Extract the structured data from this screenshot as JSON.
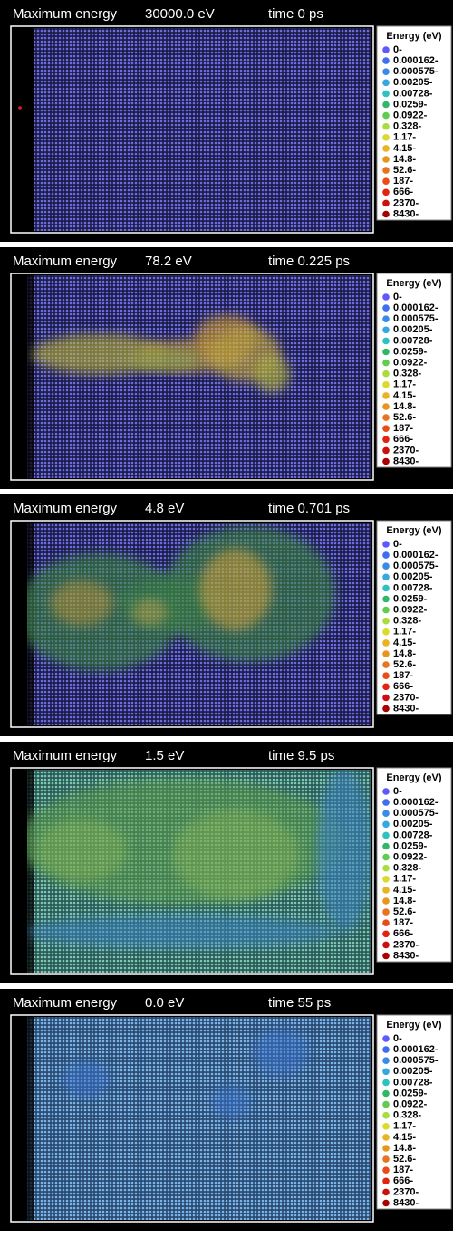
{
  "header_label": "Maximum energy",
  "panels": [
    {
      "max_energy": "30000.0 eV",
      "time": "time 0 ps"
    },
    {
      "max_energy": "78.2 eV",
      "time": "time 0.225 ps"
    },
    {
      "max_energy": "4.8 eV",
      "time": "time 0.701 ps"
    },
    {
      "max_energy": "1.5 eV",
      "time": "time 9.5 ps"
    },
    {
      "max_energy": "0.0 eV",
      "time": "time 55 ps"
    }
  ],
  "legend": {
    "title": "Energy (eV)",
    "entries": [
      {
        "label": "0-",
        "color": "#5a5aff"
      },
      {
        "label": "0.000162-",
        "color": "#3f6ef0"
      },
      {
        "label": "0.000575-",
        "color": "#3a8ae8"
      },
      {
        "label": "0.00205-",
        "color": "#36a8e0"
      },
      {
        "label": "0.00728-",
        "color": "#30c0c0"
      },
      {
        "label": "0.0259-",
        "color": "#30b868"
      },
      {
        "label": "0.0922-",
        "color": "#60cc50"
      },
      {
        "label": "0.328-",
        "color": "#a8dc40"
      },
      {
        "label": "1.17-",
        "color": "#dada30"
      },
      {
        "label": "4.15-",
        "color": "#e8b424"
      },
      {
        "label": "14.8-",
        "color": "#e89420"
      },
      {
        "label": "52.6-",
        "color": "#e87420"
      },
      {
        "label": "187-",
        "color": "#e84c18"
      },
      {
        "label": "666-",
        "color": "#e02410"
      },
      {
        "label": "2370-",
        "color": "#cc1010"
      },
      {
        "label": "8430-",
        "color": "#a80000"
      }
    ]
  }
}
